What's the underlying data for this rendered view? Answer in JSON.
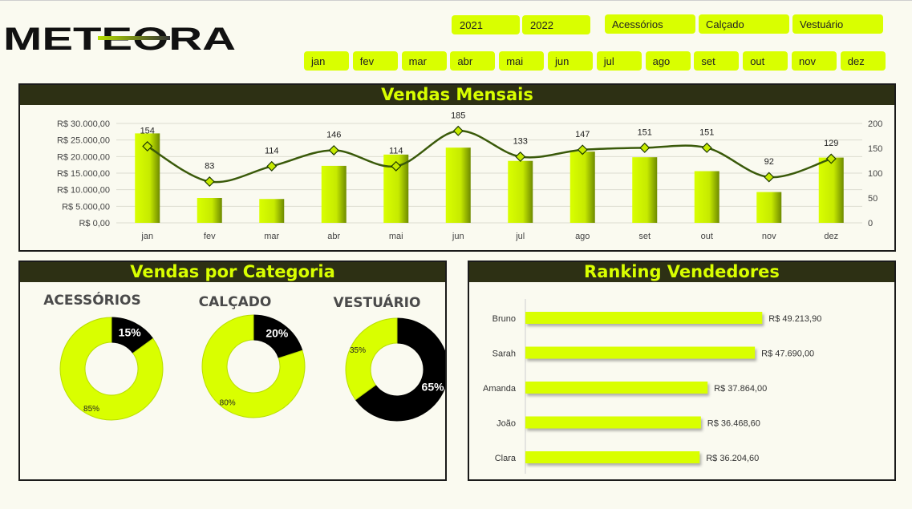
{
  "brand": {
    "logo_text": "METEORA"
  },
  "filters": {
    "years": [
      "2021",
      "2022"
    ],
    "categories": [
      "Acessórios",
      "Calçado",
      "Vestuário"
    ],
    "months": [
      "jan",
      "fev",
      "mar",
      "abr",
      "mai",
      "jun",
      "jul",
      "ago",
      "set",
      "out",
      "nov",
      "dez"
    ]
  },
  "colors": {
    "accent": "#d9ff00",
    "header_bg": "#2d3014",
    "line": "#3a5a0a",
    "dark": "#000000"
  },
  "panels": {
    "monthly_title": "Vendas Mensais",
    "category_title": "Vendas por Categoria",
    "ranking_title": "Ranking Vendedores"
  },
  "chart_data": [
    {
      "type": "bar",
      "title": "Vendas Mensais",
      "categories": [
        "jan",
        "fev",
        "mar",
        "abr",
        "mai",
        "jun",
        "jul",
        "ago",
        "set",
        "out",
        "nov",
        "dez"
      ],
      "y_ticks": [
        "R$ 0,00",
        "R$ 5.000,00",
        "R$ 10.000,00",
        "R$ 15.000,00",
        "R$ 20.000,00",
        "R$ 25.000,00",
        "R$ 30.000,00"
      ],
      "ylim": [
        0,
        30000
      ],
      "y2_ticks": [
        "0",
        "50",
        "100",
        "150",
        "200"
      ],
      "y2lim": [
        0,
        200
      ],
      "series": [
        {
          "type": "bar",
          "axis": "left",
          "values": [
            27000,
            7500,
            7200,
            17200,
            20600,
            22700,
            18700,
            21500,
            19800,
            15600,
            9300,
            19700
          ]
        },
        {
          "type": "line",
          "axis": "right",
          "values": [
            154,
            83,
            114,
            146,
            114,
            185,
            133,
            147,
            151,
            151,
            92,
            129
          ],
          "labels": [
            "154",
            "83",
            "114",
            "146",
            "114",
            "185",
            "133",
            "147",
            "151",
            "151",
            "92",
            "129"
          ]
        }
      ],
      "grid": true
    },
    {
      "type": "pie",
      "title": "ACESSÓRIOS",
      "values": [
        15,
        85
      ],
      "labels": [
        "15%",
        "85%"
      ]
    },
    {
      "type": "pie",
      "title": "CALÇADO",
      "values": [
        20,
        80
      ],
      "labels": [
        "20%",
        "80%"
      ]
    },
    {
      "type": "pie",
      "title": "VESTUÁRIO",
      "values": [
        65,
        35
      ],
      "labels": [
        "65%",
        "35%"
      ]
    },
    {
      "type": "bar",
      "orientation": "horizontal",
      "title": "Ranking Vendedores",
      "categories": [
        "Bruno",
        "Sarah",
        "Amanda",
        "João",
        "Clara"
      ],
      "values": [
        49213.9,
        47690.0,
        37864.0,
        36468.6,
        36204.6
      ],
      "labels": [
        "R$ 49.213,90",
        "R$ 47.690,00",
        "R$ 37.864,00",
        "R$ 36.468,60",
        "R$ 36.204,60"
      ],
      "xlim": [
        0,
        60000
      ]
    }
  ]
}
